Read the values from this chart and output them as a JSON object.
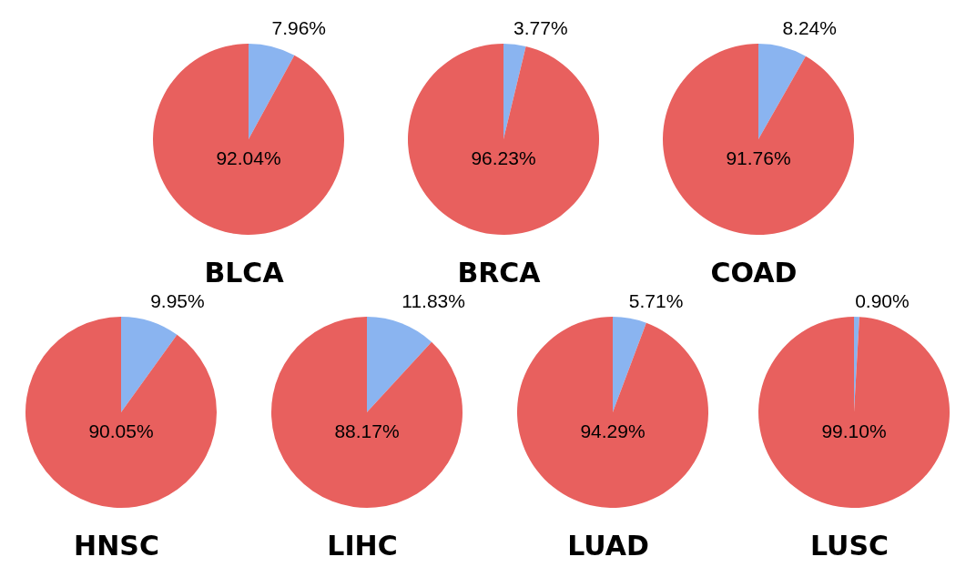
{
  "chart_data": [
    {
      "type": "pie",
      "title": "BLCA",
      "categories": [
        null,
        null
      ],
      "values": [
        7.96,
        92.04
      ],
      "colors": [
        "#8ab4f0",
        "#e8605e"
      ],
      "value_labels": [
        "7.96%",
        "92.04%"
      ]
    },
    {
      "type": "pie",
      "title": "BRCA",
      "categories": [
        null,
        null
      ],
      "values": [
        3.77,
        96.23
      ],
      "colors": [
        "#8ab4f0",
        "#e8605e"
      ],
      "value_labels": [
        "3.77%",
        "96.23%"
      ]
    },
    {
      "type": "pie",
      "title": "COAD",
      "categories": [
        null,
        null
      ],
      "values": [
        8.24,
        91.76
      ],
      "colors": [
        "#8ab4f0",
        "#e8605e"
      ],
      "value_labels": [
        "8.24%",
        "91.76%"
      ]
    },
    {
      "type": "pie",
      "title": "HNSC",
      "categories": [
        null,
        null
      ],
      "values": [
        9.95,
        90.05
      ],
      "colors": [
        "#8ab4f0",
        "#e8605e"
      ],
      "value_labels": [
        "9.95%",
        "90.05%"
      ]
    },
    {
      "type": "pie",
      "title": "LIHC",
      "categories": [
        null,
        null
      ],
      "values": [
        11.83,
        88.17
      ],
      "colors": [
        "#8ab4f0",
        "#e8605e"
      ],
      "value_labels": [
        "11.83%",
        "88.17%"
      ]
    },
    {
      "type": "pie",
      "title": "LUAD",
      "categories": [
        null,
        null
      ],
      "values": [
        5.71,
        94.29
      ],
      "colors": [
        "#8ab4f0",
        "#e8605e"
      ],
      "value_labels": [
        "5.71%",
        "94.29%"
      ]
    },
    {
      "type": "pie",
      "title": "LUSC",
      "categories": [
        null,
        null
      ],
      "values": [
        0.9,
        99.1
      ],
      "colors": [
        "#8ab4f0",
        "#e8605e"
      ],
      "value_labels": [
        "0.90%",
        "99.10%"
      ]
    }
  ]
}
